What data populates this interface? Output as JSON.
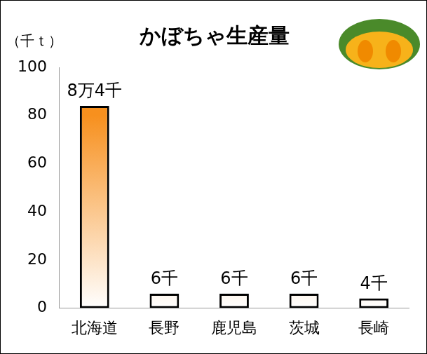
{
  "chart_data": {
    "type": "bar",
    "title": "かぼちゃ生産量",
    "ylabel": "（千ｔ）",
    "categories": [
      "北海道",
      "長野",
      "鹿児島",
      "茨城",
      "長崎"
    ],
    "values": [
      84,
      6,
      6,
      6,
      4
    ],
    "value_labels": [
      "8万4千",
      "6千",
      "6千",
      "6千",
      "4千"
    ],
    "data_labels": true,
    "color": "#f7901e",
    "ylim": [
      0,
      100
    ],
    "yticks": [
      0,
      20,
      40,
      60,
      80,
      100
    ],
    "grid": false
  }
}
